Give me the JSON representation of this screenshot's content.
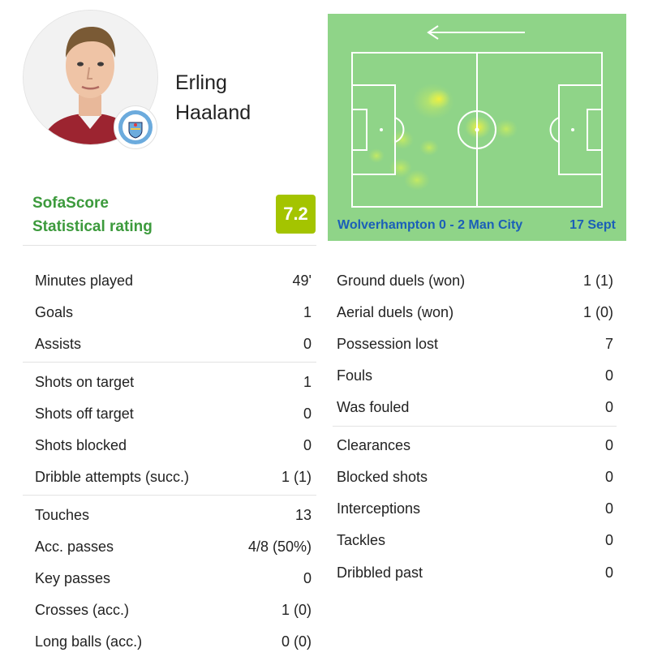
{
  "player": {
    "first_name": "Erling",
    "last_name": "Haaland",
    "club_badge_icon": "manchester-city-crest-icon"
  },
  "rating": {
    "label_line1": "SofaScore",
    "label_line2": "Statistical rating",
    "value": "7.2",
    "color": "#a4c400"
  },
  "match": {
    "title": "Wolverhampton 0 - 2 Man City",
    "date": "17 Sept",
    "direction_icon": "arrow-left-icon",
    "heatmap_color": "#8fd488"
  },
  "stats_left": [
    {
      "label": "Minutes played",
      "value": "49'"
    },
    {
      "label": "Goals",
      "value": "1"
    },
    {
      "label": "Assists",
      "value": "0"
    },
    {
      "label": "Shots on target",
      "value": "1"
    },
    {
      "label": "Shots off target",
      "value": "0"
    },
    {
      "label": "Shots blocked",
      "value": "0"
    },
    {
      "label": "Dribble attempts (succ.)",
      "value": "1 (1)"
    },
    {
      "label": "Touches",
      "value": "13"
    },
    {
      "label": "Acc. passes",
      "value": "4/8 (50%)"
    },
    {
      "label": "Key passes",
      "value": "0"
    },
    {
      "label": "Crosses (acc.)",
      "value": "1 (0)"
    },
    {
      "label": "Long balls (acc.)",
      "value": "0 (0)"
    }
  ],
  "stats_right": [
    {
      "label": "Ground duels (won)",
      "value": "1 (1)"
    },
    {
      "label": "Aerial duels (won)",
      "value": "1 (0)"
    },
    {
      "label": "Possession lost",
      "value": "7"
    },
    {
      "label": "Fouls",
      "value": "0"
    },
    {
      "label": "Was fouled",
      "value": "0"
    },
    {
      "label": "Clearances",
      "value": "0"
    },
    {
      "label": "Blocked shots",
      "value": "0"
    },
    {
      "label": "Interceptions",
      "value": "0"
    },
    {
      "label": "Tackles",
      "value": "0"
    },
    {
      "label": "Dribbled past",
      "value": "0"
    }
  ]
}
